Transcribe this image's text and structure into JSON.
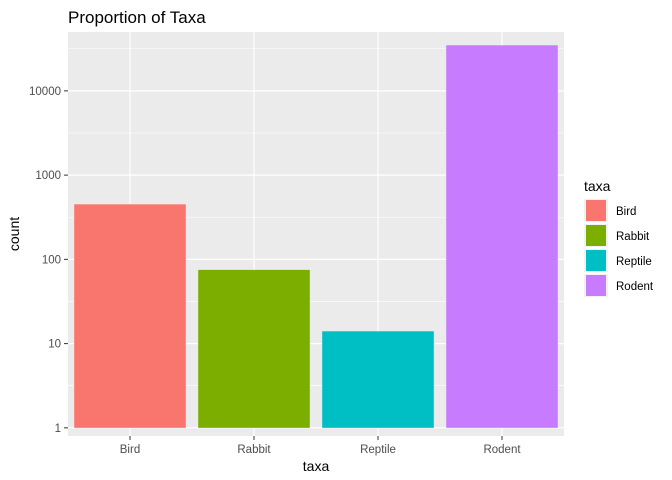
{
  "chart_data": {
    "type": "bar",
    "title": "Proportion of Taxa",
    "xlabel": "taxa",
    "ylabel": "count",
    "categories": [
      "Bird",
      "Rabbit",
      "Reptile",
      "Rodent"
    ],
    "values": [
      450,
      75,
      14,
      34786
    ],
    "colors": [
      "#F8766D",
      "#7CAE00",
      "#00BFC4",
      "#C77CFF"
    ],
    "y_scale": "log10",
    "ylim": [
      0.8,
      50000
    ],
    "y_ticks": [
      1,
      10,
      100,
      1000,
      10000
    ],
    "y_tick_labels": [
      "1",
      "10",
      "100",
      "1000",
      "10000"
    ],
    "grid": true,
    "panel_background": "#EBEBEB",
    "legend": {
      "title": "taxa",
      "position": "right",
      "entries": [
        "Bird",
        "Rabbit",
        "Reptile",
        "Rodent"
      ]
    }
  }
}
